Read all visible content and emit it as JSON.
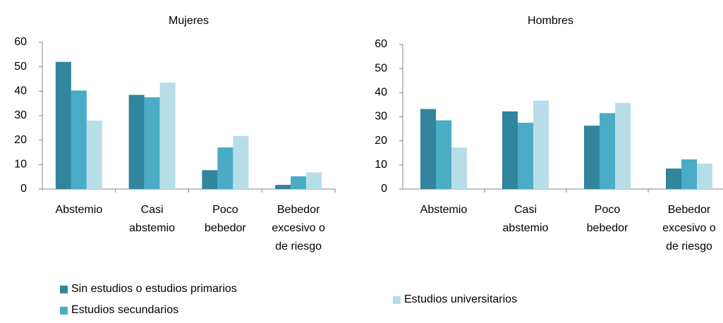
{
  "chart_data": [
    {
      "type": "bar",
      "title": "Mujeres",
      "categories": [
        "Abstemio",
        "Casi abstemio",
        "Poco bebedor",
        "Bebedor excesivo o de riesgo"
      ],
      "series": [
        {
          "name": "Sin estudios o estudios primarios",
          "color": "#31859c",
          "values": [
            52,
            38.5,
            7.7,
            1.7
          ]
        },
        {
          "name": "Estudios secundarios",
          "color": "#4bacc6",
          "values": [
            40.3,
            37.5,
            17,
            5.2
          ]
        },
        {
          "color": "#b7dee8",
          "values": [
            28,
            43.5,
            21.7,
            6.8
          ]
        }
      ],
      "ylim": [
        0,
        60
      ],
      "yticks": [
        0,
        10,
        20,
        30,
        40,
        50,
        60
      ],
      "grid": false
    },
    {
      "type": "bar",
      "title": "Hombres",
      "categories": [
        "Abstemio",
        "Casi abstemio",
        "Poco bebedor",
        "Bebedor excesivo o de riesgo"
      ],
      "series": [
        {
          "color": "#31859c",
          "values": [
            33.2,
            32.2,
            26.3,
            8.5
          ]
        },
        {
          "color": "#4bacc6",
          "values": [
            28.5,
            27.5,
            31.5,
            12.3
          ]
        },
        {
          "name": "Estudios universitarios",
          "color": "#b7dee8",
          "values": [
            17.2,
            36.7,
            35.7,
            10.5
          ]
        }
      ],
      "ylim": [
        0,
        60
      ],
      "yticks": [
        0,
        10,
        20,
        30,
        40,
        50,
        60
      ],
      "grid": false
    }
  ]
}
